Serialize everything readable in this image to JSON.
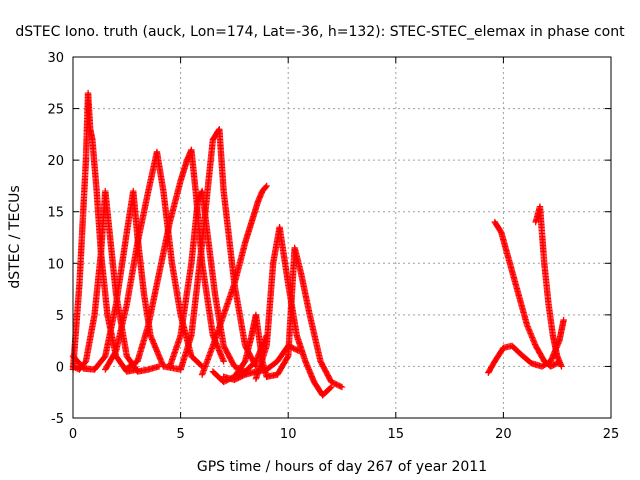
{
  "chart_data": {
    "type": "scatter",
    "title": "dSTEC Iono. truth (auck, Lon=174, Lat=-36, h=132): STEC-STEC_elemax in phase cont",
    "xlabel": "GPS time / hours of day 267 of year 2011",
    "ylabel": "dSTEC  / TECUs",
    "xlim": [
      0,
      25
    ],
    "ylim": [
      -5,
      30
    ],
    "x_ticks": [
      "0",
      "5",
      "10",
      "15",
      "20",
      "25"
    ],
    "y_ticks": [
      "-5",
      "0",
      "5",
      "10",
      "15",
      "20",
      "25",
      "30"
    ],
    "grid": true,
    "legend": "none",
    "marker": "+",
    "color": "#ff0000",
    "series": [
      {
        "x": [
          0.0,
          0.3,
          0.6,
          0.7,
          0.8,
          0.9,
          1.1,
          1.3,
          1.6,
          2.0,
          2.5,
          3.0
        ],
        "y": [
          -0.3,
          8.0,
          20.0,
          26.5,
          23.0,
          22.0,
          17.0,
          11.0,
          5.0,
          1.0,
          -0.5,
          -0.3
        ]
      },
      {
        "x": [
          0.0,
          0.3,
          0.6,
          1.0,
          1.3,
          1.5,
          1.7,
          2.0,
          2.5,
          3.0,
          3.5,
          4.0
        ],
        "y": [
          0.0,
          -0.3,
          0.5,
          5.0,
          11.0,
          17.0,
          13.0,
          7.0,
          1.0,
          -0.5,
          -0.3,
          0.0
        ]
      },
      {
        "x": [
          0.0,
          0.5,
          1.0,
          1.5,
          2.0,
          2.5,
          2.8,
          3.0,
          3.3,
          3.6,
          4.2,
          5.0
        ],
        "y": [
          1.0,
          -0.2,
          -0.3,
          1.0,
          6.0,
          13.0,
          17.0,
          12.5,
          7.0,
          3.0,
          0.0,
          -0.3
        ]
      },
      {
        "x": [
          1.5,
          2.0,
          2.5,
          3.0,
          3.5,
          3.9,
          4.2,
          4.6,
          5.0,
          5.5,
          6.0
        ],
        "y": [
          -0.3,
          1.5,
          6.0,
          12.0,
          17.0,
          20.8,
          17.0,
          10.0,
          5.0,
          1.0,
          0.0
        ]
      },
      {
        "x": [
          2.5,
          3.0,
          3.5,
          4.0,
          4.5,
          5.0,
          5.3,
          5.5,
          5.7,
          6.0,
          6.5,
          7.0
        ],
        "y": [
          -0.2,
          0.5,
          4.0,
          9.0,
          14.0,
          18.0,
          20.0,
          21.0,
          17.0,
          10.0,
          3.0,
          0.5
        ]
      },
      {
        "x": [
          4.5,
          5.0,
          5.5,
          5.8,
          6.0,
          6.3,
          6.6,
          7.0,
          7.5,
          8.0
        ],
        "y": [
          0.0,
          3.0,
          10.0,
          16.0,
          17.0,
          12.0,
          7.0,
          2.0,
          0.0,
          -0.5
        ]
      },
      {
        "x": [
          5.0,
          5.5,
          6.0,
          6.3,
          6.5,
          6.8,
          7.0,
          7.5,
          8.0,
          8.5
        ],
        "y": [
          -0.3,
          3.0,
          12.0,
          18.0,
          22.0,
          23.0,
          17.0,
          8.0,
          2.0,
          0.0
        ]
      },
      {
        "x": [
          6.0,
          6.5,
          7.0,
          7.5,
          8.0,
          8.3,
          8.6,
          8.8,
          9.0
        ],
        "y": [
          -0.8,
          2.0,
          5.0,
          8.0,
          12.0,
          14.0,
          16.0,
          17.0,
          17.5
        ]
      },
      {
        "x": [
          6.5,
          7.0,
          7.5,
          8.0,
          8.5,
          9.0
        ],
        "y": [
          -0.5,
          -1.5,
          -1.0,
          -0.5,
          0.5,
          3.0
        ]
      },
      {
        "x": [
          7.5,
          8.0,
          8.3,
          8.5,
          8.8,
          9.0
        ],
        "y": [
          -1.0,
          0.5,
          3.0,
          5.0,
          0.5,
          -1.0
        ]
      },
      {
        "x": [
          8.5,
          9.0,
          9.3,
          9.6,
          10.0,
          10.4,
          10.8,
          11.2,
          11.6,
          12.0
        ],
        "y": [
          -1.2,
          2.0,
          10.0,
          13.5,
          8.0,
          3.0,
          0.5,
          -1.5,
          -2.8,
          -2.0
        ]
      },
      {
        "x": [
          9.0,
          9.5,
          10.0,
          10.3,
          10.6,
          11.0,
          11.5,
          12.0,
          12.5
        ],
        "y": [
          -1.0,
          -0.8,
          1.0,
          11.5,
          9.0,
          5.0,
          0.5,
          -1.5,
          -2.0
        ]
      },
      {
        "x": [
          7.0,
          7.5,
          8.0,
          8.5,
          9.0,
          9.5,
          10.0,
          10.5
        ],
        "y": [
          -1.0,
          -1.3,
          -0.8,
          -0.5,
          -0.3,
          0.5,
          2.0,
          1.5
        ]
      },
      {
        "x": [
          19.3,
          19.6,
          20.0,
          20.4,
          20.8,
          21.3,
          21.8,
          22.2,
          22.6,
          22.8
        ],
        "y": [
          -0.6,
          0.5,
          1.8,
          2.0,
          1.2,
          0.3,
          0.0,
          0.5,
          2.5,
          4.5
        ]
      },
      {
        "x": [
          19.6,
          19.9,
          20.3,
          20.7,
          21.1,
          21.5,
          21.9,
          22.2,
          22.5
        ],
        "y": [
          14.0,
          13.0,
          10.0,
          7.0,
          4.0,
          2.0,
          0.5,
          0.0,
          0.3
        ]
      },
      {
        "x": [
          21.5,
          21.7,
          21.9,
          22.1,
          22.3,
          22.5,
          22.7
        ],
        "y": [
          14.0,
          15.5,
          10.0,
          6.0,
          3.0,
          1.0,
          0.0
        ]
      }
    ]
  }
}
